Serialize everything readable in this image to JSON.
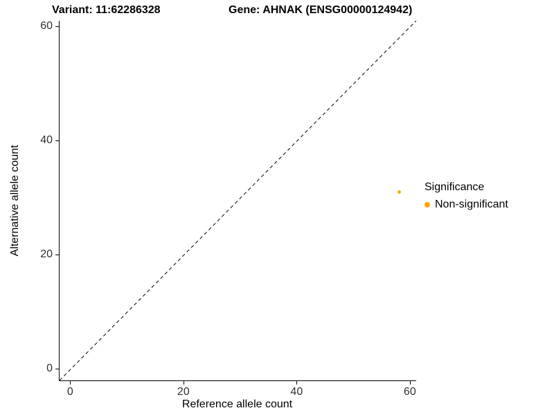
{
  "chart_data": {
    "type": "scatter",
    "title_left": "Variant: 11:62286328",
    "title_right": "Gene: AHNAK (ENSG00000124942)",
    "xlabel": "Reference allele count",
    "ylabel": "Alternative allele count",
    "xlim": [
      -2,
      61
    ],
    "ylim": [
      -2,
      61
    ],
    "xticks": [
      0,
      20,
      40,
      60
    ],
    "yticks": [
      0,
      20,
      40,
      60
    ],
    "grid": false,
    "background": "#ffffff",
    "identity_line": {
      "style": "dashed",
      "color": "#000000",
      "from": [
        -2,
        -2
      ],
      "to": [
        61,
        61
      ]
    },
    "series": [
      {
        "name": "Non-significant",
        "color": "#FFA500",
        "points": [
          {
            "x": 58,
            "y": 31
          }
        ]
      }
    ],
    "legend": {
      "title": "Significance",
      "position": "right",
      "entries": [
        {
          "label": "Non-significant",
          "color": "#FFA500"
        }
      ]
    }
  }
}
